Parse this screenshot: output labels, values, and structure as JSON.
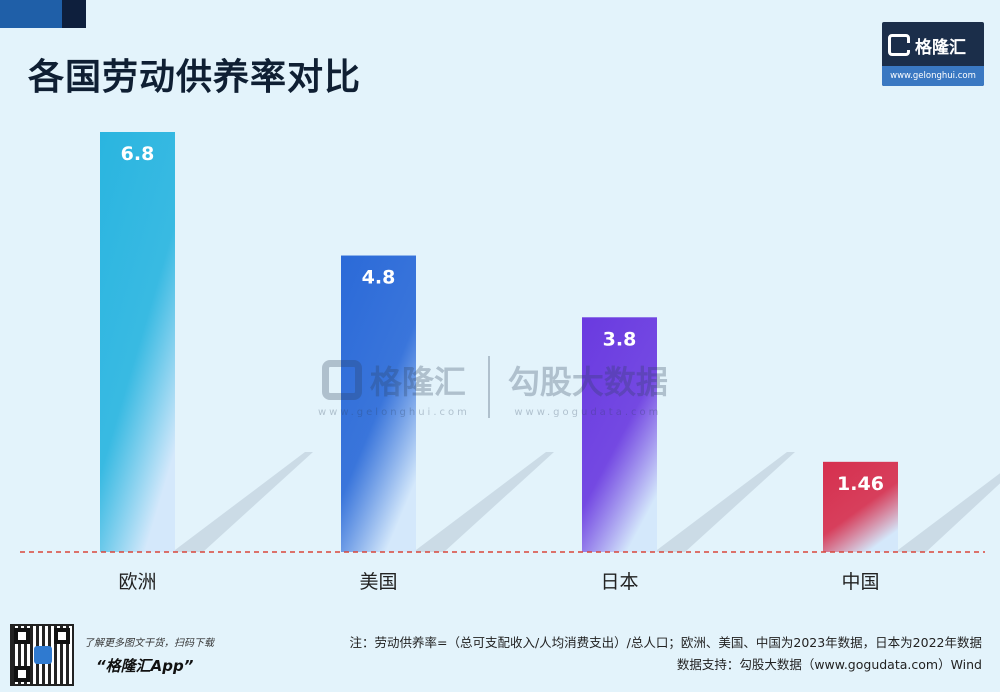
{
  "title": "各国劳动供养率对比",
  "brand": {
    "name": "格隆汇",
    "url": "www.gelonghui.com"
  },
  "watermark": {
    "left_name": "格隆汇",
    "left_url": "www.gelonghui.com",
    "right_name": "勾股大数据",
    "right_url": "www.gogudata.com"
  },
  "chart_data": {
    "type": "bar",
    "title": "各国劳动供养率对比",
    "categories": [
      "欧洲",
      "美国",
      "日本",
      "中国"
    ],
    "values": [
      6.8,
      4.8,
      3.8,
      1.46
    ],
    "value_labels": [
      "6.8",
      "4.8",
      "3.8",
      "1.46"
    ],
    "ylim": [
      0,
      6.8
    ],
    "grid": false,
    "colors": [
      "#2ab5e0",
      "#2b6ad8",
      "#6a3ae0",
      "#d62f4e"
    ],
    "baseline_color": "#d9463b"
  },
  "footer": {
    "promo_line": "了解更多图文干货，扫码下载",
    "app_name": "“格隆汇App”",
    "note": "注：劳动供养率=（总可支配收入/人均消费支出）/总人口；欧洲、美国、中国为2023年数据，日本为2022年数据",
    "source": "数据支持：勾股大数据（www.gogudata.com）Wind"
  }
}
